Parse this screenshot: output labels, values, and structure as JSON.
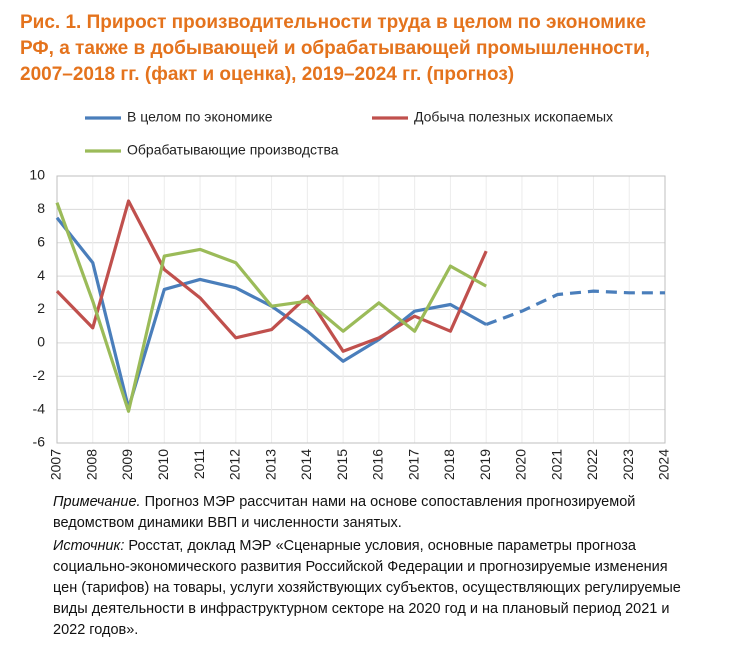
{
  "chart_data": {
    "type": "line",
    "title_lines": [
      "Рис. 1. Прирост производительности труда в целом по экономике",
      "РФ, а также в добывающей и обрабатывающей промышленности,",
      "2007–2018 гг. (факт и оценка), 2019–2024 гг. (прогноз)"
    ],
    "categories": [
      "2007",
      "2008",
      "2009",
      "2010",
      "2011",
      "2012",
      "2013",
      "2014",
      "2015",
      "2016",
      "2017",
      "2018",
      "2019",
      "2020",
      "2021",
      "2022",
      "2023",
      "2024"
    ],
    "series": [
      {
        "name": "В целом по экономике",
        "color": "#4a7ebb",
        "dash_from": 12,
        "values": [
          7.5,
          4.8,
          -3.9,
          3.2,
          3.8,
          3.3,
          2.2,
          0.7,
          -1.1,
          0.2,
          1.9,
          2.3,
          1.1,
          1.9,
          2.9,
          3.1,
          3.0,
          3.0
        ]
      },
      {
        "name": "Добыча полезных ископаемых",
        "color": "#c0504d",
        "values": [
          3.1,
          0.9,
          8.5,
          4.4,
          2.7,
          0.3,
          0.8,
          2.8,
          -0.5,
          0.3,
          1.6,
          0.7,
          5.5,
          null,
          null,
          null,
          null,
          null
        ]
      },
      {
        "name": "Обрабатывающие производства",
        "color": "#9bbb59",
        "values": [
          8.4,
          2.5,
          -4.1,
          5.2,
          5.6,
          4.8,
          2.2,
          2.5,
          0.7,
          2.4,
          0.7,
          4.6,
          3.4,
          null,
          null,
          null,
          null,
          null
        ]
      }
    ],
    "ylim": [
      -6,
      10
    ],
    "yticks": [
      -6,
      -4,
      -2,
      0,
      2,
      4,
      6,
      8,
      10
    ],
    "grid": true,
    "note_label": "Примечание.",
    "note_text": "Прогноз МЭР рассчитан нами на основе сопоставления прогнозируемой ведомством динамики ВВП и численности занятых.",
    "source_label": "Источник:",
    "source_text": "Росстат, доклад МЭР «Сценарные условия, основные параметры прогноза социально-экономического развития Российской Федерации и прогнозируемые изменения цен (тарифов) на товары, услуги хозяйствующих субъектов, осуществляющих регулируемые виды деятельности в инфраструктурном секторе на 2020 год и на плановый период 2021 и 2022 годов»."
  }
}
